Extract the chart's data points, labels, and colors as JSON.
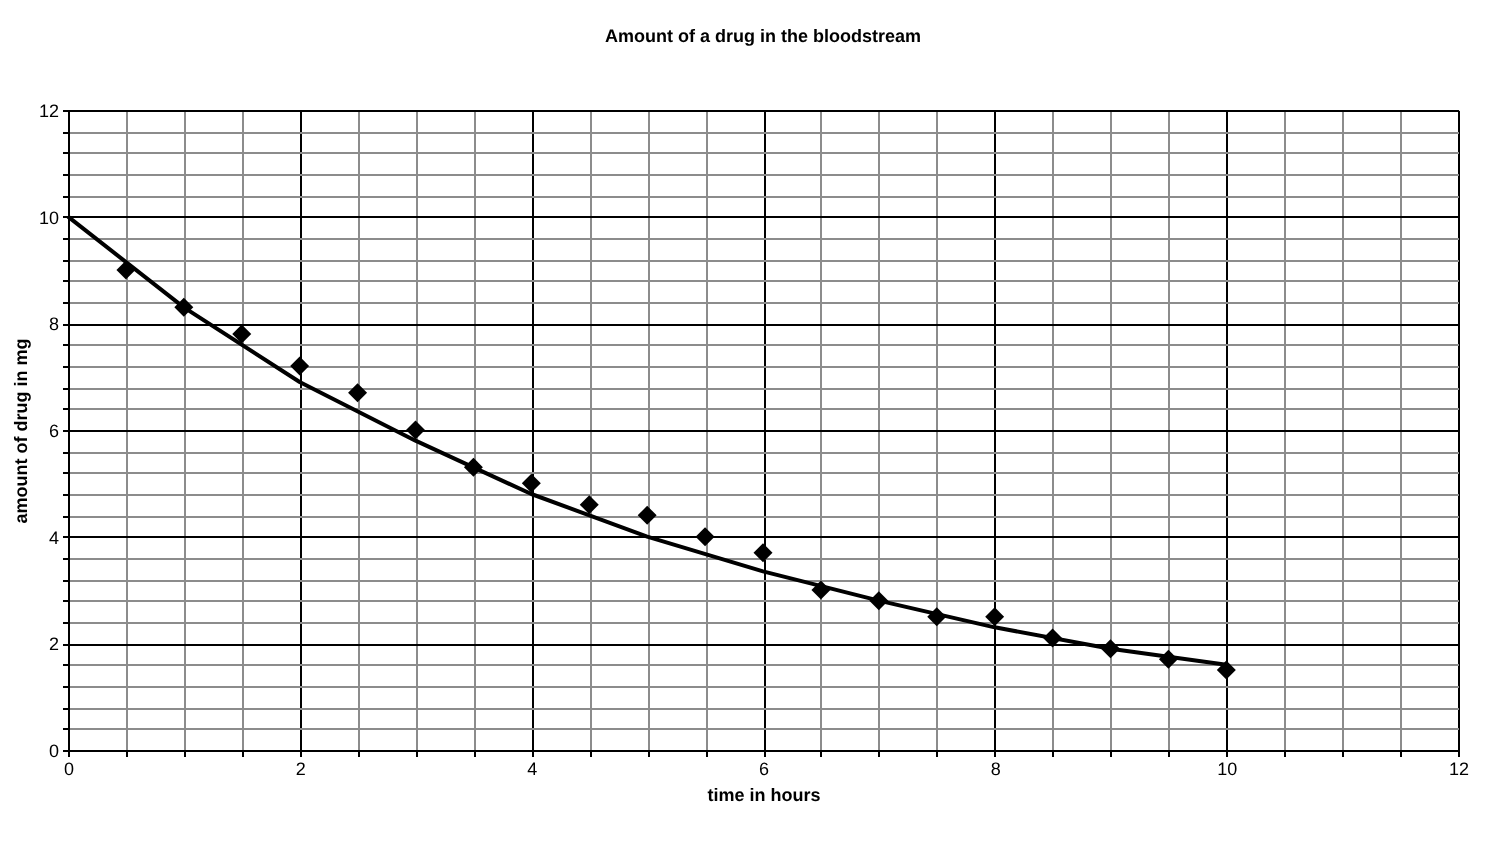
{
  "chart_data": {
    "type": "scatter",
    "title": "Amount of a drug in the bloodstream",
    "xlabel": "time in hours",
    "ylabel": "amount of drug in mg",
    "x": [
      0.5,
      1,
      1.5,
      2,
      2.5,
      3,
      3.5,
      4,
      4.5,
      5,
      5.5,
      6,
      6.5,
      7,
      7.5,
      8,
      8.5,
      9,
      9.5,
      10
    ],
    "series": [
      {
        "color": "#000000",
        "marker": "diamond",
        "values": [
          9.0,
          8.3,
          7.8,
          7.2,
          6.7,
          6.0,
          5.3,
          5.0,
          4.6,
          4.4,
          4.0,
          3.7,
          3.0,
          2.8,
          2.5,
          2.5,
          2.1,
          1.9,
          1.7,
          1.5
        ]
      },
      {
        "type": "line",
        "color": "#000000",
        "line_style": "solid",
        "marker": "none",
        "x": [
          0,
          1,
          2,
          3,
          4,
          5,
          6,
          7,
          8,
          9,
          10
        ],
        "values": [
          10,
          8.3,
          6.9,
          5.8,
          4.8,
          4.0,
          3.35,
          2.8,
          2.3,
          1.9,
          1.6
        ]
      }
    ],
    "xlim": [
      0,
      12
    ],
    "xticks": [
      0,
      2,
      4,
      6,
      8,
      10,
      12
    ],
    "ylim": [
      0,
      12
    ],
    "yticks": [
      0,
      2,
      4,
      6,
      8,
      10,
      12
    ],
    "grid": true
  }
}
